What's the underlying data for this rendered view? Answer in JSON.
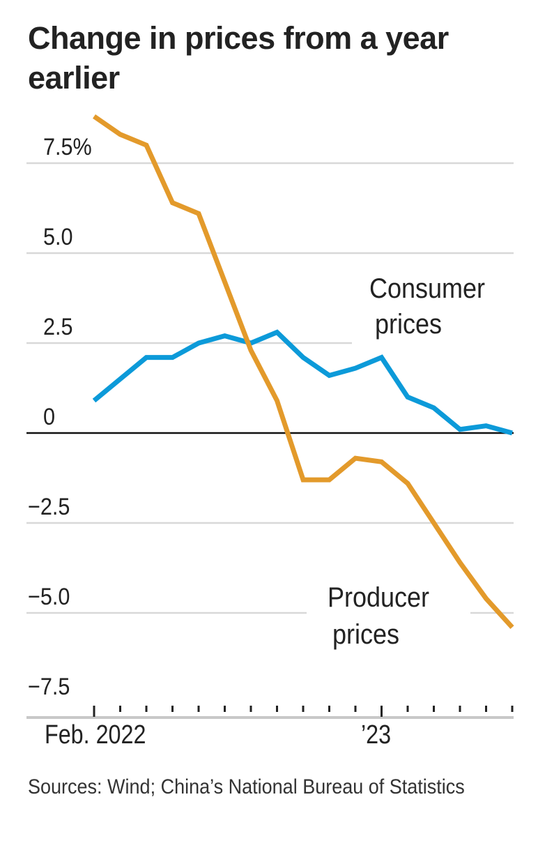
{
  "chart_data": {
    "type": "line",
    "title": "Change in prices from a year earlier",
    "x": [
      "Feb 2022",
      "Mar 2022",
      "Apr 2022",
      "May 2022",
      "Jun 2022",
      "Jul 2022",
      "Aug 2022",
      "Sep 2022",
      "Oct 2022",
      "Nov 2022",
      "Dec 2022",
      "Jan 2023",
      "Feb 2023",
      "Mar 2023",
      "Apr 2023",
      "May 2023",
      "Jun 2023"
    ],
    "x_tick_labels": [
      {
        "index": 0,
        "label": "Feb. 2022"
      },
      {
        "index": 11,
        "label": "’23"
      }
    ],
    "y_ticks": [
      {
        "value": 7.5,
        "label": "7.5%"
      },
      {
        "value": 5,
        "label": "5.0"
      },
      {
        "value": 2.5,
        "label": "2.5"
      },
      {
        "value": 0,
        "label": "0"
      },
      {
        "value": -2.5,
        "label": "−2.5"
      },
      {
        "value": -5,
        "label": "−5.0"
      },
      {
        "value": -7.5,
        "label": "−7.5"
      }
    ],
    "ylim": [
      -7.5,
      9
    ],
    "grid": true,
    "series": [
      {
        "name": "Consumer prices",
        "label_lines": [
          "Consumer",
          "prices"
        ],
        "color": "#0c9ad9",
        "values": [
          0.9,
          1.5,
          2.1,
          2.1,
          2.5,
          2.7,
          2.5,
          2.8,
          2.1,
          1.6,
          1.8,
          2.1,
          1.0,
          0.7,
          0.1,
          0.2,
          0.0
        ]
      },
      {
        "name": "Producer prices",
        "label_lines": [
          "Producer",
          "prices"
        ],
        "color": "#e39a2b",
        "values": [
          8.8,
          8.3,
          8.0,
          6.4,
          6.1,
          4.2,
          2.3,
          0.9,
          -1.3,
          -1.3,
          -0.7,
          -0.8,
          -1.4,
          -2.5,
          -3.6,
          -4.6,
          -5.4
        ]
      }
    ]
  },
  "source": "Sources: Wind; China’s National Bureau of Statistics"
}
